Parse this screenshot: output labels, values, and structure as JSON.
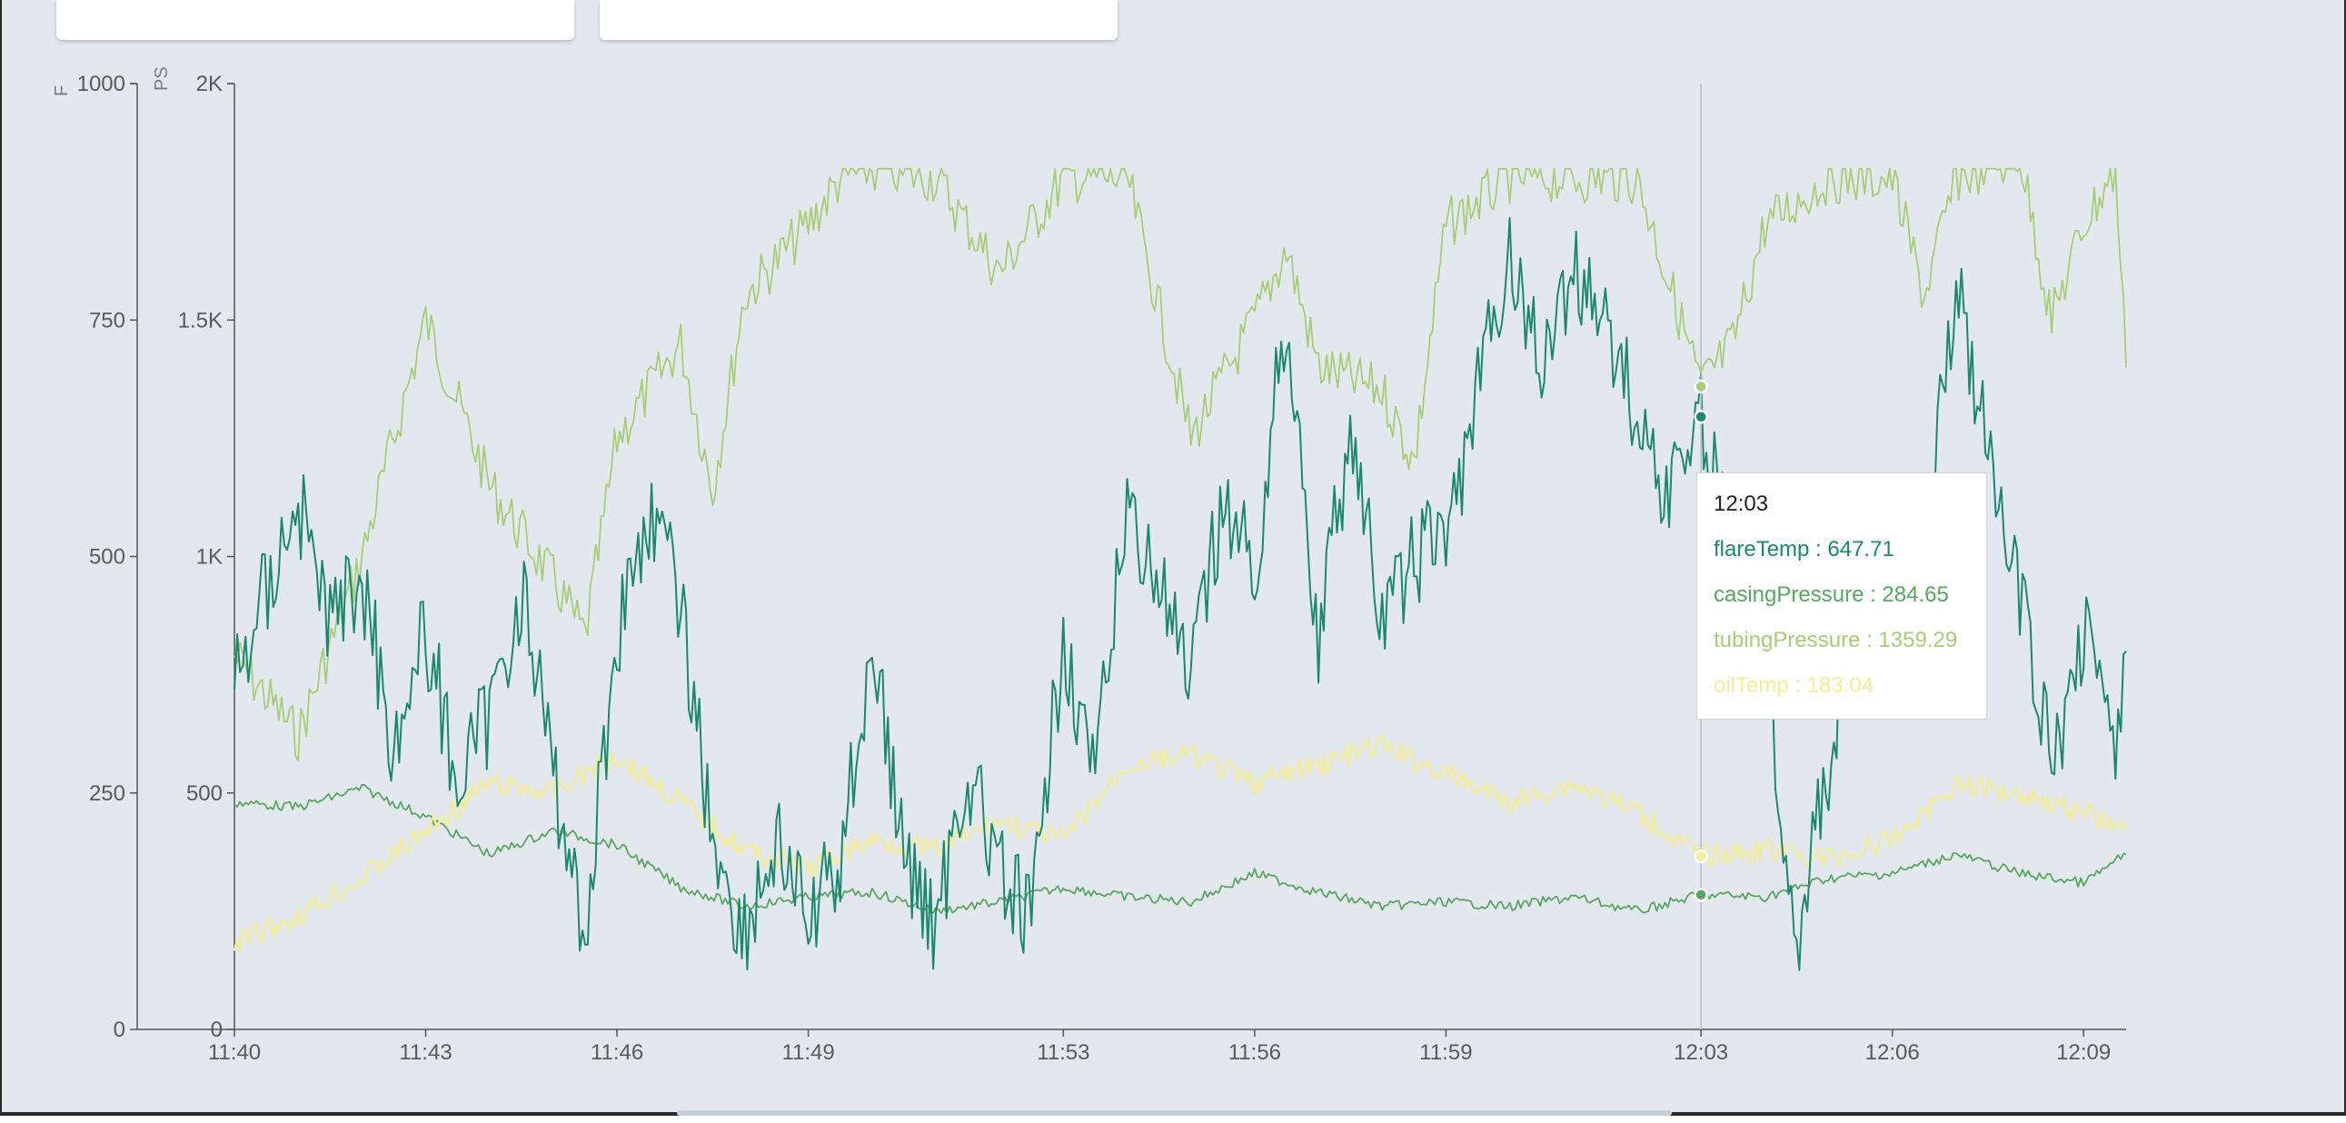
{
  "colors": {
    "flareTemp": "#1c8770",
    "casingPressure": "#5aa660",
    "tubingPressure": "#a8cd78",
    "oilTemp": "#f3ec9a",
    "background": "#e3e7ee"
  },
  "tooltip": {
    "time": "12:03",
    "rows": [
      {
        "text": "flareTemp : 647.71"
      },
      {
        "text": "casingPressure : 284.65"
      },
      {
        "text": "tubingPressure : 1359.29"
      },
      {
        "text": "oilTemp : 183.04"
      }
    ]
  },
  "chart_data": {
    "type": "line",
    "xlabel": "",
    "x_ticks": [
      "11:40",
      "11:43",
      "11:46",
      "11:49",
      "11:53",
      "11:56",
      "11:59",
      "12:03",
      "12:06",
      "12:09"
    ],
    "x_range": [
      "11:40",
      "12:09:40"
    ],
    "y_left": {
      "unit": "F",
      "range": [
        0,
        1000
      ],
      "ticks": [
        "0",
        "250",
        "500",
        "750",
        "1000"
      ]
    },
    "y_right": {
      "unit": "PS",
      "range": [
        0,
        2000
      ],
      "ticks": [
        "0",
        "500",
        "1K",
        "1.5K",
        "2K"
      ]
    },
    "hover_time": "12:03",
    "grid": false,
    "series": [
      {
        "name": "flareTemp",
        "axis": "F",
        "points": [
          [
            "11:40",
            370
          ],
          [
            "11:41",
            560
          ],
          [
            "11:41:30",
            430
          ],
          [
            "11:42",
            480
          ],
          [
            "11:42:30",
            300
          ],
          [
            "11:43",
            420
          ],
          [
            "11:43:30",
            260
          ],
          [
            "11:44",
            330
          ],
          [
            "11:44:30",
            470
          ],
          [
            "11:45",
            270
          ],
          [
            "11:45:30",
            100
          ],
          [
            "11:46",
            420
          ],
          [
            "11:46:30",
            550
          ],
          [
            "11:47",
            450
          ],
          [
            "11:47:30",
            200
          ],
          [
            "11:48",
            100
          ],
          [
            "11:48:30",
            200
          ],
          [
            "11:49",
            110
          ],
          [
            "11:49:30",
            180
          ],
          [
            "11:50",
            410
          ],
          [
            "11:50:30",
            180
          ],
          [
            "11:51",
            110
          ],
          [
            "11:51:30",
            280
          ],
          [
            "11:52",
            160
          ],
          [
            "11:52:30",
            110
          ],
          [
            "11:53",
            420
          ],
          [
            "11:53:30",
            260
          ],
          [
            "11:54",
            560
          ],
          [
            "11:54:30",
            470
          ],
          [
            "11:55",
            360
          ],
          [
            "11:55:30",
            560
          ],
          [
            "11:56",
            480
          ],
          [
            "11:56:30",
            760
          ],
          [
            "11:57",
            410
          ],
          [
            "11:57:30",
            640
          ],
          [
            "11:58",
            420
          ],
          [
            "11:58:30",
            500
          ],
          [
            "11:59",
            520
          ],
          [
            "11:59:30",
            670
          ],
          [
            "12:00",
            820
          ],
          [
            "12:00:30",
            700
          ],
          [
            "12:01",
            800
          ],
          [
            "12:01:30",
            760
          ],
          [
            "12:02",
            640
          ],
          [
            "12:02:30",
            570
          ],
          [
            "12:03",
            648
          ],
          [
            "12:03:30",
            510
          ],
          [
            "12:04",
            410
          ],
          [
            "12:04:30",
            100
          ],
          [
            "12:05",
            270
          ],
          [
            "12:05:30",
            490
          ],
          [
            "12:06",
            420
          ],
          [
            "12:06:30",
            500
          ],
          [
            "12:07",
            800
          ],
          [
            "12:07:30",
            600
          ],
          [
            "12:08",
            460
          ],
          [
            "12:08:30",
            270
          ],
          [
            "12:09",
            430
          ],
          [
            "12:09:30",
            310
          ],
          [
            "12:09:40",
            400
          ]
        ]
      },
      {
        "name": "casingPressure",
        "axis": "PS",
        "points": [
          [
            "11:40",
            480
          ],
          [
            "11:41",
            470
          ],
          [
            "11:42",
            510
          ],
          [
            "11:43",
            450
          ],
          [
            "11:44",
            370
          ],
          [
            "11:45",
            420
          ],
          [
            "11:46",
            390
          ],
          [
            "11:47",
            300
          ],
          [
            "11:48",
            260
          ],
          [
            "11:49",
            280
          ],
          [
            "11:50",
            290
          ],
          [
            "11:51",
            250
          ],
          [
            "11:52",
            270
          ],
          [
            "11:53",
            300
          ],
          [
            "11:54",
            280
          ],
          [
            "11:55",
            270
          ],
          [
            "11:56",
            330
          ],
          [
            "11:57",
            290
          ],
          [
            "11:58",
            260
          ],
          [
            "11:59",
            270
          ],
          [
            "12:00",
            260
          ],
          [
            "12:01",
            280
          ],
          [
            "12:02",
            250
          ],
          [
            "12:03",
            285
          ],
          [
            "12:04",
            280
          ],
          [
            "12:05",
            320
          ],
          [
            "12:06",
            330
          ],
          [
            "12:07",
            370
          ],
          [
            "12:08",
            330
          ],
          [
            "12:09",
            310
          ],
          [
            "12:09:40",
            370
          ]
        ]
      },
      {
        "name": "tubingPressure",
        "axis": "PS",
        "points": [
          [
            "11:40",
            790
          ],
          [
            "11:41",
            620
          ],
          [
            "11:42",
            1000
          ],
          [
            "11:43",
            1500
          ],
          [
            "11:44",
            1150
          ],
          [
            "11:45",
            950
          ],
          [
            "11:45:30",
            830
          ],
          [
            "11:46",
            1250
          ],
          [
            "11:47",
            1450
          ],
          [
            "11:47:30",
            1140
          ],
          [
            "11:48",
            1550
          ],
          [
            "11:49",
            1700
          ],
          [
            "11:49:30",
            1800
          ],
          [
            "11:50",
            1820
          ],
          [
            "11:51",
            1800
          ],
          [
            "11:52",
            1600
          ],
          [
            "11:53",
            1800
          ],
          [
            "11:54",
            1800
          ],
          [
            "11:55",
            1250
          ],
          [
            "11:56",
            1500
          ],
          [
            "11:56:30",
            1650
          ],
          [
            "11:57",
            1400
          ],
          [
            "11:58",
            1350
          ],
          [
            "11:58:30",
            1200
          ],
          [
            "11:59",
            1700
          ],
          [
            "12:00",
            1800
          ],
          [
            "12:01",
            1800
          ],
          [
            "12:02",
            1800
          ],
          [
            "12:03",
            1360
          ],
          [
            "12:03:30",
            1450
          ],
          [
            "12:04",
            1700
          ],
          [
            "12:05",
            1800
          ],
          [
            "12:06",
            1800
          ],
          [
            "12:06:30",
            1550
          ],
          [
            "12:07",
            1800
          ],
          [
            "12:08",
            1850
          ],
          [
            "12:08:30",
            1500
          ],
          [
            "12:09",
            1700
          ],
          [
            "12:09:30",
            1820
          ],
          [
            "12:09:40",
            1400
          ]
        ]
      },
      {
        "name": "oilTemp",
        "axis": "F",
        "points": [
          [
            "11:40",
            90
          ],
          [
            "11:41",
            120
          ],
          [
            "11:42",
            160
          ],
          [
            "11:43",
            210
          ],
          [
            "11:44",
            260
          ],
          [
            "11:45",
            250
          ],
          [
            "11:46",
            290
          ],
          [
            "11:47",
            240
          ],
          [
            "11:48",
            190
          ],
          [
            "11:49",
            170
          ],
          [
            "11:50",
            200
          ],
          [
            "11:51",
            190
          ],
          [
            "11:52",
            220
          ],
          [
            "11:53",
            200
          ],
          [
            "11:54",
            280
          ],
          [
            "11:55",
            290
          ],
          [
            "11:56",
            260
          ],
          [
            "11:57",
            280
          ],
          [
            "11:58",
            300
          ],
          [
            "11:59",
            270
          ],
          [
            "12:00",
            240
          ],
          [
            "12:01",
            260
          ],
          [
            "12:02",
            230
          ],
          [
            "12:03",
            183
          ],
          [
            "12:04",
            190
          ],
          [
            "12:05",
            180
          ],
          [
            "12:06",
            200
          ],
          [
            "12:07",
            260
          ],
          [
            "12:08",
            250
          ],
          [
            "12:09",
            230
          ],
          [
            "12:09:40",
            210
          ]
        ]
      }
    ]
  }
}
